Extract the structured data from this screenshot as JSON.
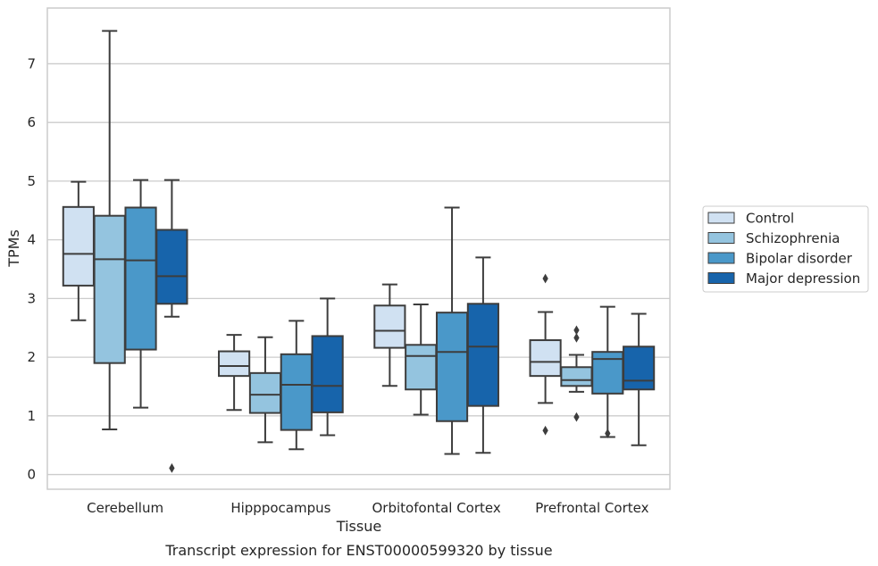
{
  "chart_data": {
    "type": "box",
    "title": "Transcript expression for ENST00000599320 by tissue",
    "xlabel": "Tissue",
    "ylabel": "TPMs",
    "ylim": [
      -0.25,
      7.95
    ],
    "yticks": [
      0,
      1,
      2,
      3,
      4,
      5,
      6,
      7
    ],
    "grid": true,
    "legend_position": "right",
    "categories": [
      "Cerebellum",
      "Hipppocampus",
      "Orbitofontal Cortex",
      "Prefrontal Cortex"
    ],
    "series": [
      {
        "name": "Control",
        "color": "#d0e1f2",
        "boxes": [
          {
            "whislo": 2.63,
            "q1": 3.22,
            "med": 3.76,
            "q3": 4.56,
            "whishi": 4.99,
            "fliers": []
          },
          {
            "whislo": 1.1,
            "q1": 1.68,
            "med": 1.85,
            "q3": 2.1,
            "whishi": 2.38,
            "fliers": []
          },
          {
            "whislo": 1.51,
            "q1": 2.16,
            "med": 2.45,
            "q3": 2.88,
            "whishi": 3.24,
            "fliers": []
          },
          {
            "whislo": 1.22,
            "q1": 1.68,
            "med": 1.92,
            "q3": 2.29,
            "whishi": 2.77,
            "fliers": [
              0.75,
              3.34
            ]
          }
        ]
      },
      {
        "name": "Schizophrenia",
        "color": "#94c4df",
        "boxes": [
          {
            "whislo": 0.77,
            "q1": 1.9,
            "med": 3.67,
            "q3": 4.41,
            "whishi": 7.56,
            "fliers": []
          },
          {
            "whislo": 0.55,
            "q1": 1.05,
            "med": 1.36,
            "q3": 1.73,
            "whishi": 2.34,
            "fliers": []
          },
          {
            "whislo": 1.02,
            "q1": 1.45,
            "med": 2.02,
            "q3": 2.21,
            "whishi": 2.9,
            "fliers": []
          },
          {
            "whislo": 1.41,
            "q1": 1.51,
            "med": 1.61,
            "q3": 1.83,
            "whishi": 2.04,
            "fliers": [
              0.98,
              2.33,
              2.46
            ]
          }
        ]
      },
      {
        "name": "Bipolar disorder",
        "color": "#4a98c9",
        "boxes": [
          {
            "whislo": 1.14,
            "q1": 2.13,
            "med": 3.65,
            "q3": 4.55,
            "whishi": 5.02,
            "fliers": []
          },
          {
            "whislo": 0.43,
            "q1": 0.76,
            "med": 1.53,
            "q3": 2.05,
            "whishi": 2.62,
            "fliers": []
          },
          {
            "whislo": 0.35,
            "q1": 0.91,
            "med": 2.09,
            "q3": 2.76,
            "whishi": 4.55,
            "fliers": []
          },
          {
            "whislo": 0.64,
            "q1": 1.38,
            "med": 1.97,
            "q3": 2.09,
            "whishi": 2.86,
            "fliers": [
              0.7
            ]
          }
        ]
      },
      {
        "name": "Major depression",
        "color": "#1764ab",
        "boxes": [
          {
            "whislo": 2.69,
            "q1": 2.91,
            "med": 3.38,
            "q3": 4.17,
            "whishi": 5.02,
            "fliers": [
              0.11
            ]
          },
          {
            "whislo": 0.67,
            "q1": 1.06,
            "med": 1.51,
            "q3": 2.36,
            "whishi": 3.0,
            "fliers": []
          },
          {
            "whislo": 0.37,
            "q1": 1.17,
            "med": 2.18,
            "q3": 2.91,
            "whishi": 3.7,
            "fliers": []
          },
          {
            "whislo": 0.5,
            "q1": 1.45,
            "med": 1.6,
            "q3": 2.18,
            "whishi": 2.74,
            "fliers": []
          }
        ]
      }
    ]
  }
}
